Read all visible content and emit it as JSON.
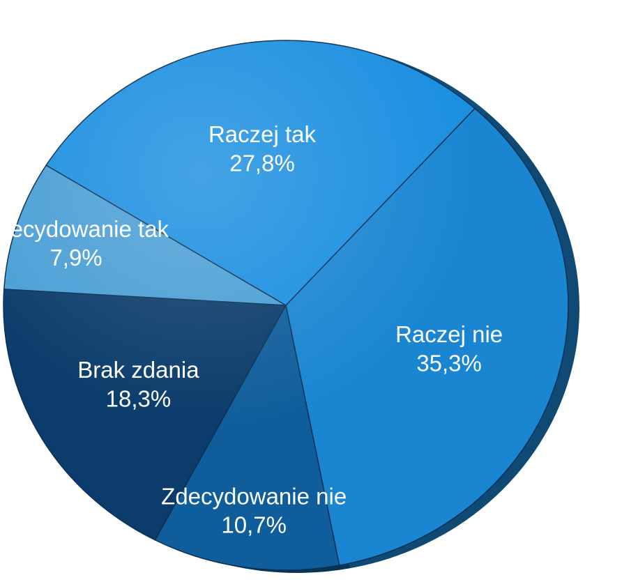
{
  "chart_data": {
    "type": "pie",
    "title": "",
    "slices": [
      {
        "label": "Raczej nie",
        "value": 35.3,
        "display": "35,3%",
        "color": "#1a86d2"
      },
      {
        "label": "Zdecydowanie nie",
        "value": 10.7,
        "display": "10,7%",
        "color": "#0f5e9b"
      },
      {
        "label": "Brak zdania",
        "value": 18.3,
        "display": "18,3%",
        "color": "#0b3c6b"
      },
      {
        "label": "Zdecydowanie tak",
        "value": 7.9,
        "display": "7,9%",
        "color": "#4a9fd5"
      },
      {
        "label": "Raczej tak",
        "value": 27.8,
        "display": "27,8%",
        "color": "#1b8fe0"
      }
    ],
    "legend": "none"
  }
}
